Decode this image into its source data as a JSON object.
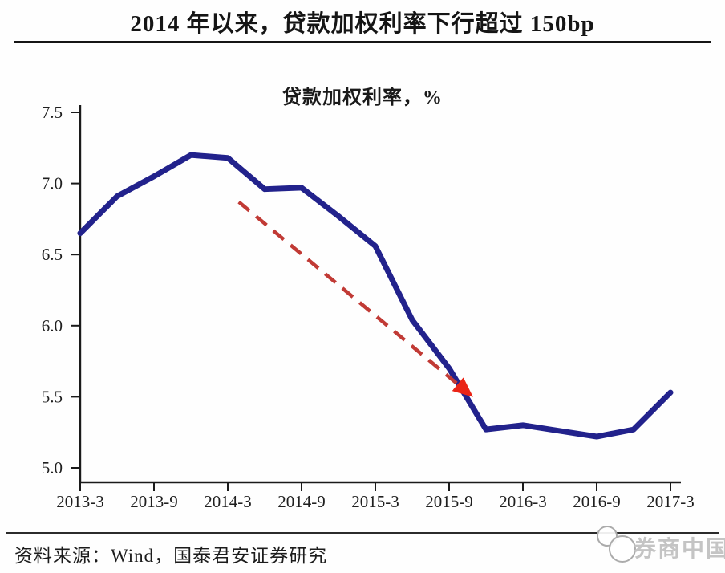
{
  "header": {
    "title": "2014 年以来，贷款加权利率下行超过 150bp"
  },
  "chart_data": {
    "type": "line",
    "title": "贷款加权利率，%",
    "xlabel": "",
    "ylabel": "",
    "x": [
      "2013-3",
      "2013-6",
      "2013-9",
      "2013-12",
      "2014-3",
      "2014-6",
      "2014-9",
      "2014-12",
      "2015-3",
      "2015-6",
      "2015-9",
      "2015-12",
      "2016-3",
      "2016-6",
      "2016-9",
      "2016-12",
      "2017-3"
    ],
    "series": [
      {
        "name": "贷款加权利率",
        "color": "#22228c",
        "values": [
          6.65,
          6.91,
          7.05,
          7.2,
          7.18,
          6.96,
          6.97,
          6.77,
          6.56,
          6.04,
          5.7,
          5.27,
          5.3,
          5.26,
          5.22,
          5.27,
          5.53
        ]
      }
    ],
    "x_tick_labels": [
      "2013-3",
      "2013-9",
      "2014-3",
      "2014-9",
      "2015-3",
      "2015-9",
      "2016-3",
      "2016-9",
      "2017-3"
    ],
    "y_ticks": [
      5.0,
      5.5,
      6.0,
      6.5,
      7.0,
      7.5
    ],
    "ylim": [
      5.0,
      7.5
    ],
    "grid": false,
    "legend": "none",
    "axis_color": "#1a1a1a",
    "annotation_arrow": {
      "style": "dashed",
      "color": "#c13a35",
      "head_color": "#ea2416",
      "from": {
        "x_index": 4.3,
        "value": 6.87
      },
      "to": {
        "x_index": 10.55,
        "value": 5.52
      }
    }
  },
  "footer": {
    "source": "资料来源：Wind，国泰君安证券研究",
    "watermark": "券商中国"
  }
}
